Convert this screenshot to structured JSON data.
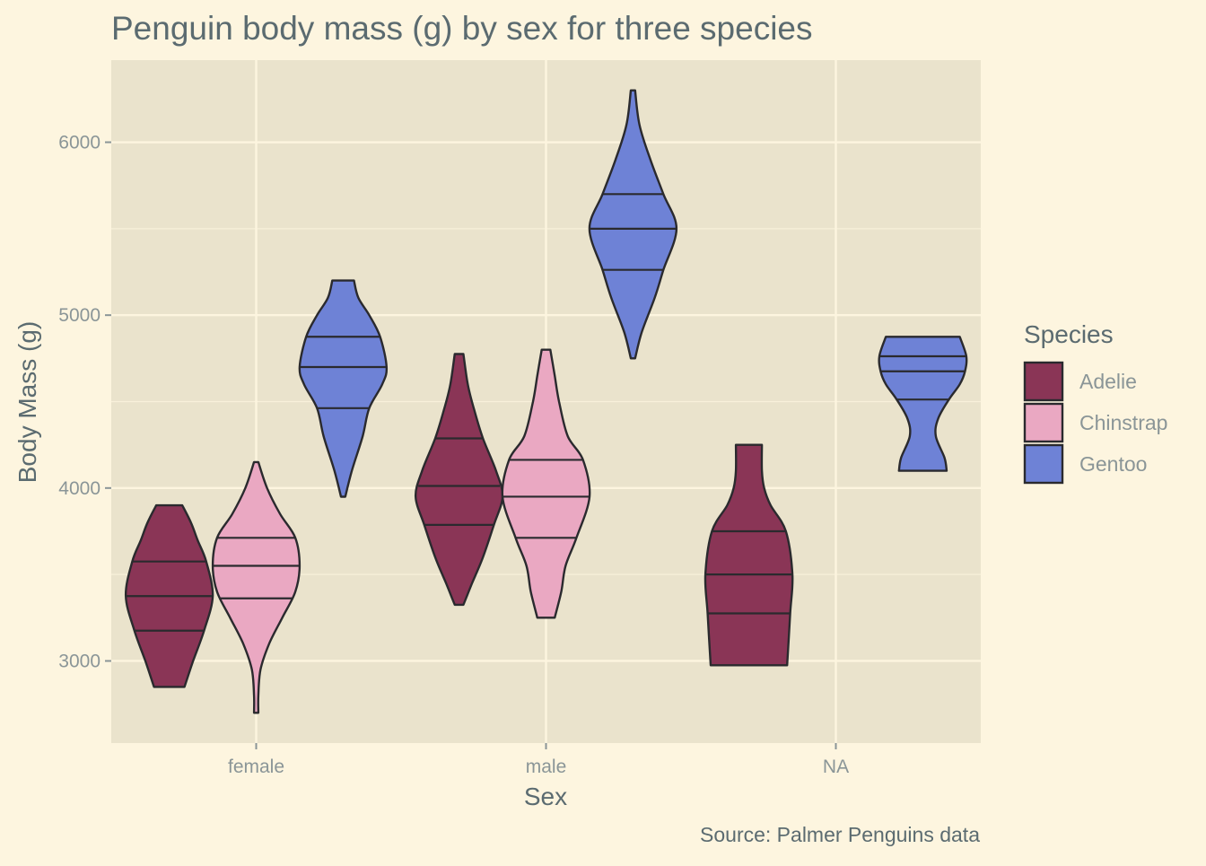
{
  "chart_data": {
    "type": "violin",
    "title": "Penguin body mass (g) by sex for three species",
    "xlabel": "Sex",
    "ylabel": "Body Mass (g)",
    "caption": "Source: Palmer Penguins data",
    "categories": [
      "female",
      "male",
      "NA"
    ],
    "ylim": [
      2525,
      6475
    ],
    "yticks": [
      3000,
      4000,
      5000,
      6000
    ],
    "grid": true,
    "legend": {
      "title": "Species",
      "placement": "right",
      "entries": [
        "Adelie",
        "Chinstrap",
        "Gentoo"
      ]
    },
    "colors": {
      "Adelie": "#8a3556",
      "Chinstrap": "#eaa8c2",
      "Gentoo": "#6e82d6",
      "panel": "#eae3cc",
      "background": "#fdf5df"
    },
    "series": [
      {
        "name": "Adelie",
        "violins": [
          {
            "category": "female",
            "min": 2850,
            "max": 3900,
            "quantiles": [
              3175,
              3375,
              3575
            ],
            "profile": [
              [
                2850,
                0.35
              ],
              [
                3000,
                0.55
              ],
              [
                3175,
                0.8
              ],
              [
                3375,
                1.0
              ],
              [
                3575,
                0.85
              ],
              [
                3700,
                0.65
              ],
              [
                3800,
                0.5
              ],
              [
                3900,
                0.3
              ]
            ]
          },
          {
            "category": "male",
            "min": 3325,
            "max": 4775,
            "quantiles": [
              3787,
              4012,
              4287
            ],
            "profile": [
              [
                3325,
                0.1
              ],
              [
                3450,
                0.3
              ],
              [
                3600,
                0.55
              ],
              [
                3787,
                0.8
              ],
              [
                3950,
                1.0
              ],
              [
                4100,
                0.85
              ],
              [
                4287,
                0.55
              ],
              [
                4450,
                0.35
              ],
              [
                4600,
                0.2
              ],
              [
                4775,
                0.1
              ]
            ]
          },
          {
            "category": "NA",
            "min": 2975,
            "max": 4250,
            "quantiles": [
              3275,
              3500,
              3750
            ],
            "profile": [
              [
                2975,
                0.88
              ],
              [
                3275,
                0.95
              ],
              [
                3500,
                1.0
              ],
              [
                3750,
                0.85
              ],
              [
                3900,
                0.5
              ],
              [
                4000,
                0.35
              ],
              [
                4100,
                0.3
              ],
              [
                4250,
                0.3
              ]
            ]
          }
        ]
      },
      {
        "name": "Chinstrap",
        "violins": [
          {
            "category": "female",
            "min": 2700,
            "max": 4150,
            "quantiles": [
              3362,
              3550,
              3712
            ],
            "profile": [
              [
                2700,
                0.05
              ],
              [
                2800,
                0.05
              ],
              [
                2950,
                0.1
              ],
              [
                3100,
                0.3
              ],
              [
                3250,
                0.6
              ],
              [
                3400,
                0.9
              ],
              [
                3550,
                1.0
              ],
              [
                3712,
                0.9
              ],
              [
                3850,
                0.55
              ],
              [
                4000,
                0.25
              ],
              [
                4150,
                0.05
              ]
            ]
          },
          {
            "category": "male",
            "min": 3250,
            "max": 4800,
            "quantiles": [
              3712,
              3950,
              4163
            ],
            "profile": [
              [
                3250,
                0.2
              ],
              [
                3400,
                0.35
              ],
              [
                3550,
                0.45
              ],
              [
                3712,
                0.7
              ],
              [
                3950,
                1.0
              ],
              [
                4163,
                0.85
              ],
              [
                4300,
                0.5
              ],
              [
                4500,
                0.3
              ],
              [
                4650,
                0.2
              ],
              [
                4800,
                0.1
              ]
            ]
          }
        ]
      },
      {
        "name": "Gentoo",
        "violins": [
          {
            "category": "female",
            "min": 3950,
            "max": 5200,
            "quantiles": [
              4462,
              4700,
              4875
            ],
            "profile": [
              [
                3950,
                0.05
              ],
              [
                4100,
                0.2
              ],
              [
                4300,
                0.45
              ],
              [
                4462,
                0.6
              ],
              [
                4600,
                0.9
              ],
              [
                4700,
                1.0
              ],
              [
                4875,
                0.85
              ],
              [
                5000,
                0.6
              ],
              [
                5100,
                0.35
              ],
              [
                5200,
                0.25
              ]
            ]
          },
          {
            "category": "male",
            "min": 4750,
            "max": 6300,
            "quantiles": [
              5262,
              5500,
              5700
            ],
            "profile": [
              [
                4750,
                0.05
              ],
              [
                4900,
                0.2
              ],
              [
                5100,
                0.5
              ],
              [
                5262,
                0.7
              ],
              [
                5500,
                1.0
              ],
              [
                5700,
                0.7
              ],
              [
                5900,
                0.4
              ],
              [
                6100,
                0.15
              ],
              [
                6300,
                0.05
              ]
            ]
          },
          {
            "category": "NA",
            "min": 4100,
            "max": 4875,
            "quantiles": [
              4512,
              4675,
              4762
            ],
            "profile": [
              [
                4100,
                0.55
              ],
              [
                4175,
                0.5
              ],
              [
                4300,
                0.3
              ],
              [
                4400,
                0.35
              ],
              [
                4512,
                0.6
              ],
              [
                4600,
                0.85
              ],
              [
                4675,
                0.97
              ],
              [
                4762,
                1.0
              ],
              [
                4875,
                0.85
              ]
            ]
          }
        ]
      }
    ]
  }
}
